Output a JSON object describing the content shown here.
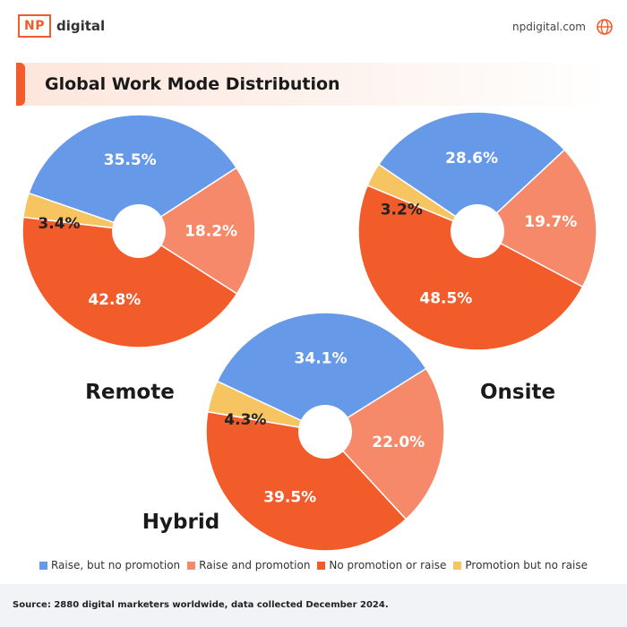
{
  "header": {
    "logo_box": "NP",
    "logo_text": "digital",
    "site": "npdigital.com",
    "globe_icon": "globe-icon"
  },
  "title": "Global Work Mode Distribution",
  "colors": {
    "brand": "#f25c2a",
    "raise_no_promotion": "#6699e8",
    "raise_and_promotion": "#f5896a",
    "no_promotion_or_raise": "#f25c2a",
    "promotion_no_raise": "#f6c460"
  },
  "chart_data": {
    "type": "pie",
    "variant": "donut",
    "categories": [
      "Raise, but no promotion",
      "Raise and promotion",
      "No promotion or raise",
      "Promotion but no raise"
    ],
    "charts": [
      {
        "name": "Remote",
        "values": [
          35.5,
          18.2,
          42.8,
          3.4
        ],
        "labels": [
          "35.5%",
          "18.2%",
          "42.8%",
          "3.4%"
        ]
      },
      {
        "name": "Onsite",
        "values": [
          28.6,
          19.7,
          48.5,
          3.2
        ],
        "labels": [
          "28.6%",
          "19.7%",
          "48.5%",
          "3.2%"
        ]
      },
      {
        "name": "Hybrid",
        "values": [
          34.1,
          22.0,
          39.5,
          4.3
        ],
        "labels": [
          "34.1%",
          "22.0%",
          "39.5%",
          "4.3%"
        ]
      }
    ],
    "legend_position": "bottom"
  },
  "legend": [
    {
      "label": "Raise, but no promotion",
      "color": "#6699e8"
    },
    {
      "label": "Raise and promotion",
      "color": "#f5896a"
    },
    {
      "label": "No promotion or raise",
      "color": "#f25c2a"
    },
    {
      "label": "Promotion but no raise",
      "color": "#f6c460"
    }
  ],
  "footer": {
    "source": "Source: 2880 digital marketers worldwide, data collected December 2024."
  }
}
